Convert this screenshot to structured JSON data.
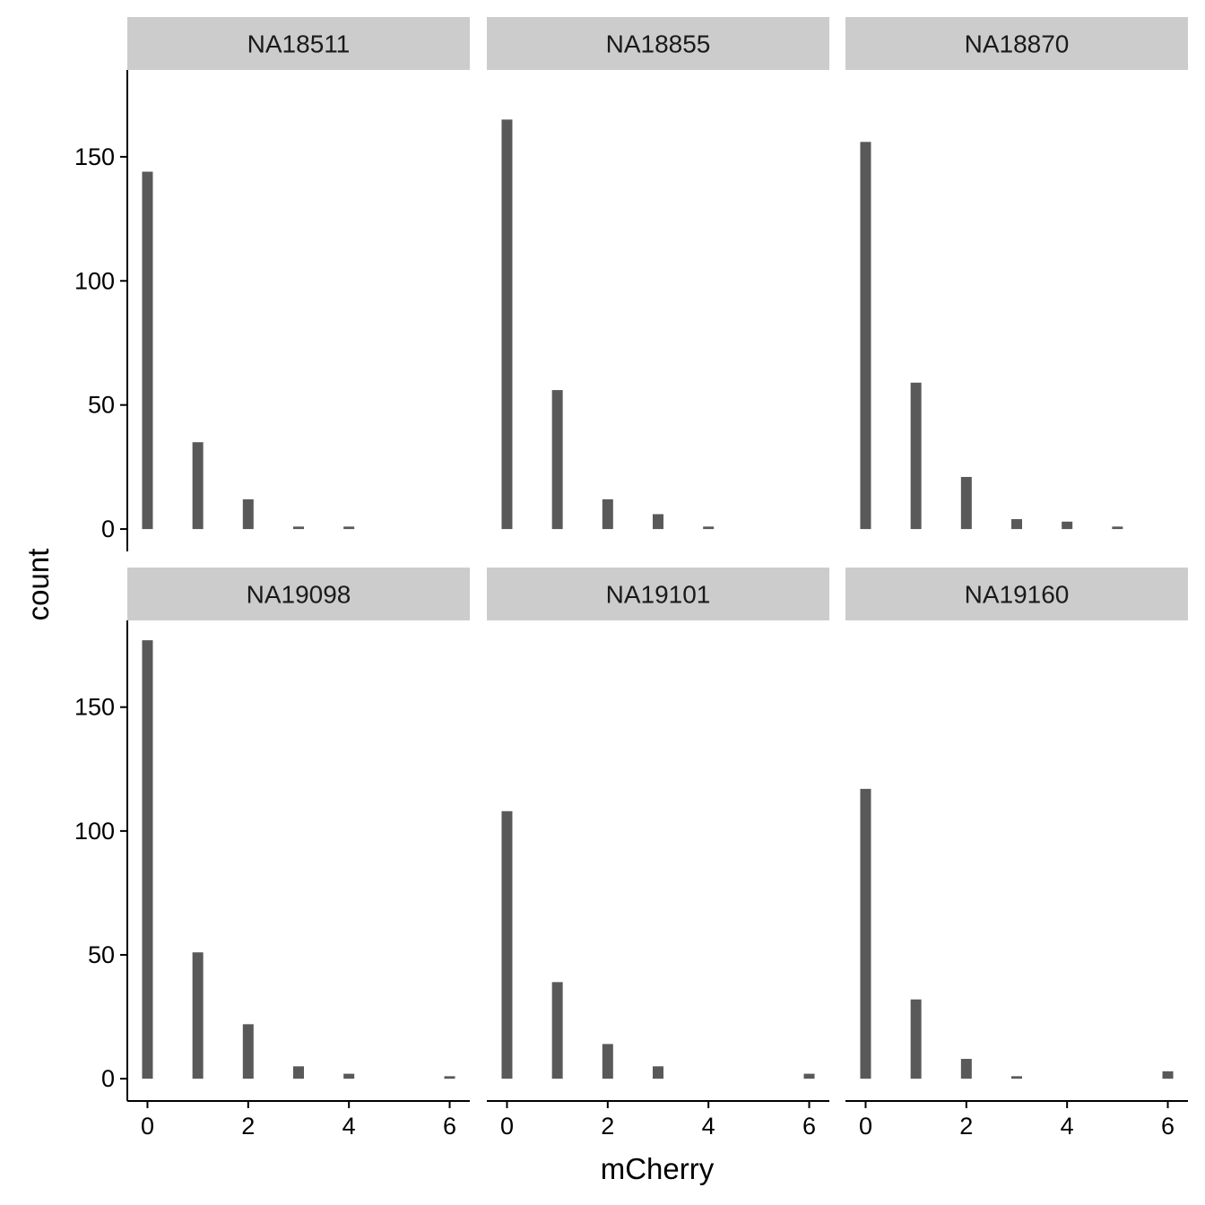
{
  "chart_data": {
    "type": "bar",
    "facet_layout": "2 rows x 3 columns",
    "xlabel": "mCherry",
    "ylabel": "count",
    "xlim": [
      -0.4,
      6.4
    ],
    "ylim": [
      -9,
      185
    ],
    "x_ticks": [
      0,
      2,
      4,
      6
    ],
    "y_ticks": [
      0,
      50,
      100,
      150
    ],
    "grid": false,
    "bar_color": "#595959",
    "strip_color": "#cccccc",
    "axis_color": "#000000",
    "panels": [
      {
        "name": "NA18511",
        "x": [
          0,
          1,
          2,
          3,
          4
        ],
        "values": [
          144,
          35,
          12,
          1,
          1
        ]
      },
      {
        "name": "NA18855",
        "x": [
          0,
          1,
          2,
          3,
          4
        ],
        "values": [
          165,
          56,
          12,
          6,
          1
        ]
      },
      {
        "name": "NA18870",
        "x": [
          0,
          1,
          2,
          3,
          4,
          5
        ],
        "values": [
          156,
          59,
          21,
          4,
          3,
          1
        ]
      },
      {
        "name": "NA19098",
        "x": [
          0,
          1,
          2,
          3,
          4,
          6
        ],
        "values": [
          177,
          51,
          22,
          5,
          2,
          1
        ]
      },
      {
        "name": "NA19101",
        "x": [
          0,
          1,
          2,
          3,
          6
        ],
        "values": [
          108,
          39,
          14,
          5,
          2
        ]
      },
      {
        "name": "NA19160",
        "x": [
          0,
          1,
          2,
          3,
          6
        ],
        "values": [
          117,
          32,
          8,
          1,
          3
        ]
      }
    ]
  }
}
